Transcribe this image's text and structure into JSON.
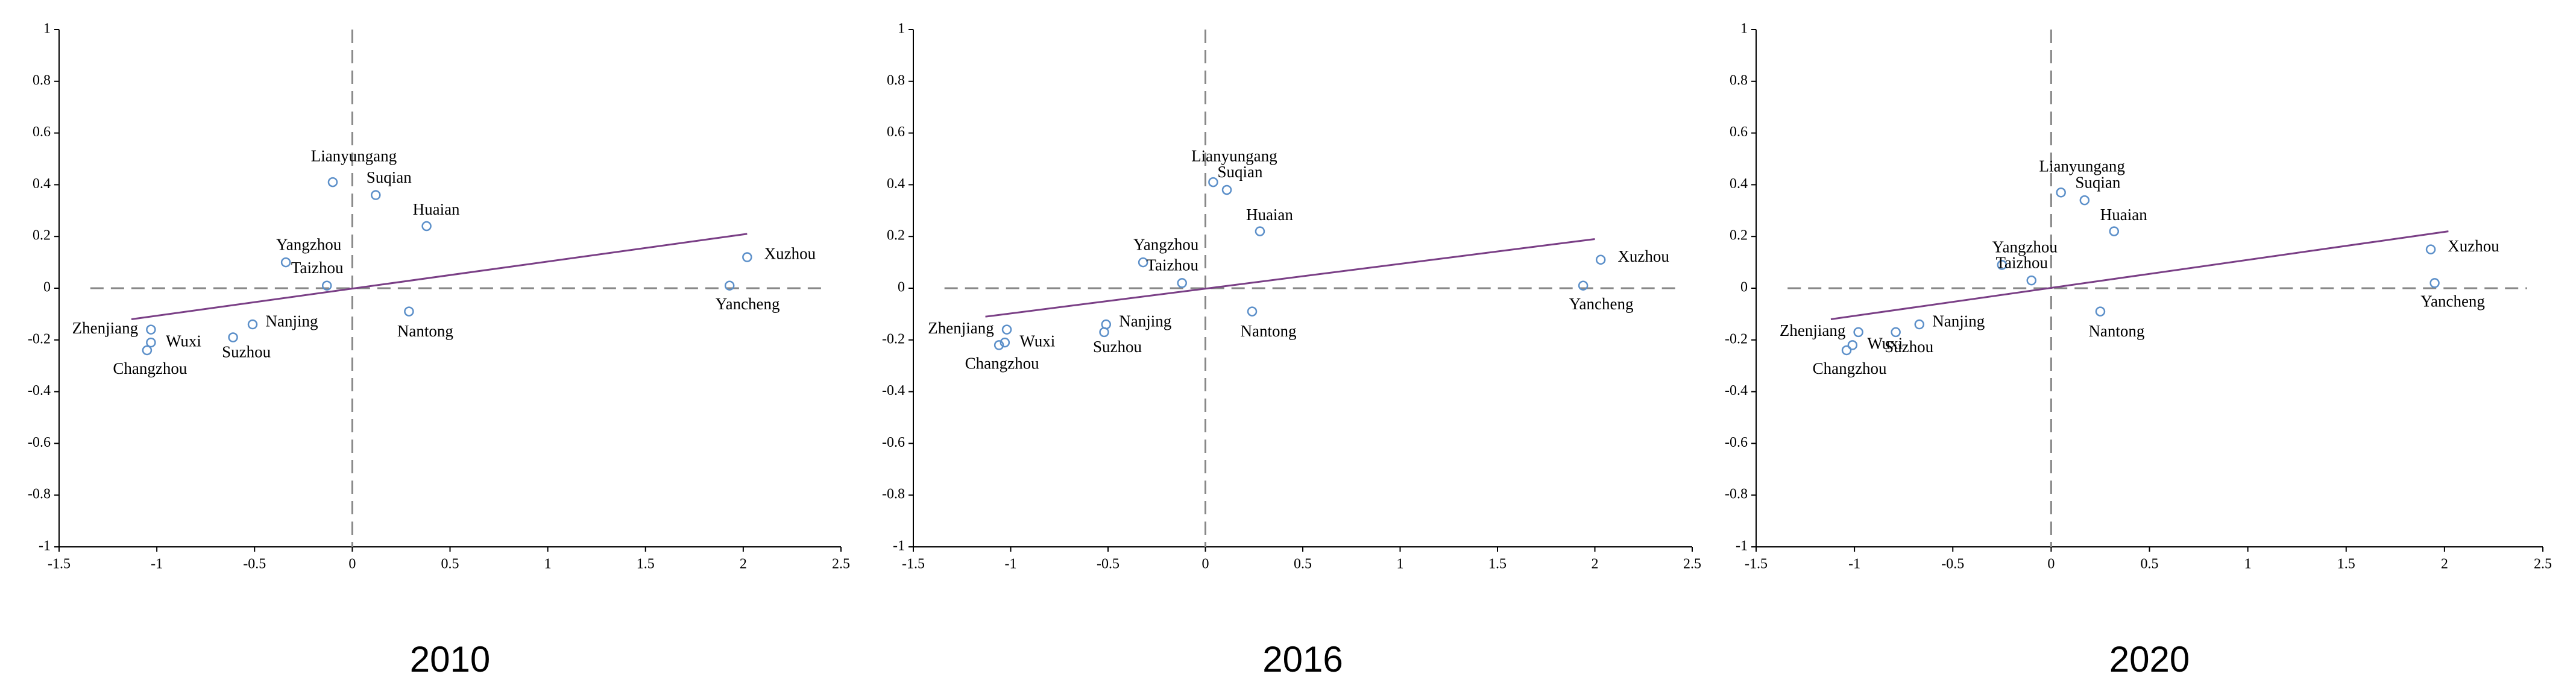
{
  "chart_data": [
    {
      "type": "scatter",
      "title": "2010",
      "color": "#5b8fc9",
      "labels": [
        "Lianyungang",
        "Suqian",
        "Huaian",
        "Yangzhou",
        "Taizhou",
        "Xuzhou",
        "Yancheng",
        "Nantong",
        "Nanjing",
        "Suzhou",
        "Zhenjiang",
        "Wuxi",
        "Changzhou"
      ],
      "x": [
        -0.1,
        0.12,
        0.38,
        -0.34,
        -0.13,
        2.02,
        1.93,
        0.29,
        -0.51,
        -0.61,
        -1.03,
        -1.03,
        -1.05
      ],
      "y": [
        0.41,
        0.36,
        0.24,
        0.1,
        0.01,
        0.12,
        0.01,
        -0.09,
        -0.14,
        -0.19,
        -0.16,
        -0.21,
        -0.24
      ],
      "trend": {
        "color": "#7a3f86",
        "x": [
          -1.13,
          2.02
        ],
        "y": [
          -0.12,
          0.21
        ]
      },
      "xlim": [
        -1.5,
        2.5
      ],
      "ylim": [
        -1,
        1
      ],
      "xticks": [
        -1.5,
        -1,
        -0.5,
        0,
        0.5,
        1,
        1.5,
        2,
        2.5
      ],
      "yticks": [
        -1,
        -0.8,
        -0.6,
        -0.4,
        -0.2,
        0,
        0.2,
        0.4,
        0.6,
        0.8,
        1
      ]
    },
    {
      "type": "scatter",
      "title": "2016",
      "color": "#5b8fc9",
      "labels": [
        "Lianyungang",
        "Suqian",
        "Huaian",
        "Yangzhou",
        "Taizhou",
        "Xuzhou",
        "Yancheng",
        "Nantong",
        "Nanjing",
        "Suzhou",
        "Zhenjiang",
        "Wuxi",
        "Changzhou"
      ],
      "x": [
        0.04,
        0.11,
        0.28,
        -0.32,
        -0.12,
        2.03,
        1.94,
        0.24,
        -0.51,
        -0.52,
        -1.02,
        -1.03,
        -1.06
      ],
      "y": [
        0.41,
        0.38,
        0.22,
        0.1,
        0.02,
        0.11,
        0.01,
        -0.09,
        -0.14,
        -0.17,
        -0.16,
        -0.21,
        -0.22
      ],
      "trend": {
        "color": "#7a3f86",
        "x": [
          -1.13,
          2.0
        ],
        "y": [
          -0.11,
          0.19
        ]
      },
      "xlim": [
        -1.5,
        2.5
      ],
      "ylim": [
        -1,
        1
      ],
      "xticks": [
        -1.5,
        -1,
        -0.5,
        0,
        0.5,
        1,
        1.5,
        2,
        2.5
      ],
      "yticks": [
        -1,
        -0.8,
        -0.6,
        -0.4,
        -0.2,
        0,
        0.2,
        0.4,
        0.6,
        0.8,
        1
      ]
    },
    {
      "type": "scatter",
      "title": "2020",
      "color": "#5b8fc9",
      "labels": [
        "Lianyungang",
        "Suqian",
        "Huaian",
        "Yangzhou",
        "Taizhou",
        "Xuzhou",
        "Yancheng",
        "Nantong",
        "Nanjing",
        "Suzhou",
        "Zhenjiang",
        "Wuxi",
        "Changzhou"
      ],
      "x": [
        0.05,
        0.17,
        0.32,
        -0.25,
        -0.1,
        1.93,
        1.95,
        0.25,
        -0.67,
        -0.79,
        -0.98,
        -1.01,
        -1.04
      ],
      "y": [
        0.37,
        0.34,
        0.22,
        0.09,
        0.03,
        0.15,
        0.02,
        -0.09,
        -0.14,
        -0.17,
        -0.17,
        -0.22,
        -0.24
      ],
      "trend": {
        "color": "#7a3f86",
        "x": [
          -1.12,
          2.02
        ],
        "y": [
          -0.12,
          0.22
        ]
      },
      "xlim": [
        -1.5,
        2.5
      ],
      "ylim": [
        -1,
        1
      ],
      "xticks": [
        -1.5,
        -1,
        -0.5,
        0,
        0.5,
        1,
        1.5,
        2,
        2.5
      ],
      "yticks": [
        -1,
        -0.8,
        -0.6,
        -0.4,
        -0.2,
        0,
        0.2,
        0.4,
        0.6,
        0.8,
        1
      ]
    }
  ]
}
